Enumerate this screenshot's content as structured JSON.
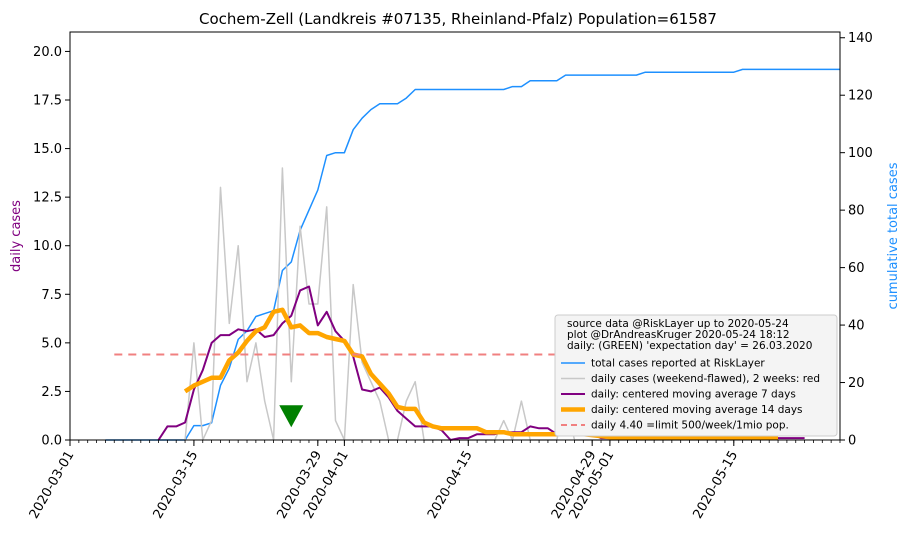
{
  "chart_data": {
    "type": "line",
    "title": "Cochem-Zell (Landkreis #07135, Rheinland-Pfalz) Population=61587",
    "ylabel_left": "daily cases",
    "ylabel_right": "cumulative total cases",
    "x_range": [
      "2020-03-01",
      "2020-05-27"
    ],
    "x_ticks": [
      "2020-03-01",
      "2020-03-15",
      "2020-03-29",
      "2020-04-01",
      "2020-04-15",
      "2020-04-29",
      "2020-05-01",
      "2020-05-15"
    ],
    "y_left_range": [
      0,
      21
    ],
    "y_left_ticks": [
      "0.0",
      "2.5",
      "5.0",
      "7.5",
      "10.0",
      "12.5",
      "15.0",
      "17.5",
      "20.0"
    ],
    "y_right_range": [
      0,
      142
    ],
    "y_right_ticks": [
      "0",
      "20",
      "40",
      "60",
      "80",
      "100",
      "120",
      "140"
    ],
    "grid": false,
    "legend_position": "lower-right",
    "legend_header": [
      "source data @RiskLayer up to 2020-05-24",
      "plot @DrAndreasKruger 2020-05-24 18:12",
      "daily: (GREEN) 'expectation day' = 26.03.2020"
    ],
    "expectation_marker": {
      "date": "2020-03-26",
      "value": 0.5,
      "color": "#008000"
    },
    "series": [
      {
        "name": "total cases reported at RiskLayer",
        "axis": "right",
        "color": "#1e90ff",
        "width": 1.5,
        "points": [
          [
            "2020-03-05",
            0
          ],
          [
            "2020-03-14",
            0
          ],
          [
            "2020-03-15",
            5
          ],
          [
            "2020-03-16",
            5
          ],
          [
            "2020-03-17",
            6
          ],
          [
            "2020-03-18",
            19
          ],
          [
            "2020-03-19",
            25
          ],
          [
            "2020-03-20",
            35
          ],
          [
            "2020-03-21",
            38
          ],
          [
            "2020-03-22",
            43
          ],
          [
            "2020-03-23",
            44
          ],
          [
            "2020-03-24",
            45
          ],
          [
            "2020-03-25",
            59
          ],
          [
            "2020-03-26",
            62
          ],
          [
            "2020-03-27",
            73
          ],
          [
            "2020-03-28",
            80
          ],
          [
            "2020-03-29",
            87
          ],
          [
            "2020-03-30",
            99
          ],
          [
            "2020-03-31",
            100
          ],
          [
            "2020-04-01",
            100
          ],
          [
            "2020-04-02",
            108
          ],
          [
            "2020-04-03",
            112
          ],
          [
            "2020-04-04",
            115
          ],
          [
            "2020-04-05",
            117
          ],
          [
            "2020-04-06",
            117
          ],
          [
            "2020-04-07",
            117
          ],
          [
            "2020-04-08",
            119
          ],
          [
            "2020-04-09",
            122
          ],
          [
            "2020-04-19",
            122
          ],
          [
            "2020-04-20",
            123
          ],
          [
            "2020-04-21",
            123
          ],
          [
            "2020-04-22",
            125
          ],
          [
            "2020-04-25",
            125
          ],
          [
            "2020-04-26",
            127
          ],
          [
            "2020-05-04",
            127
          ],
          [
            "2020-05-05",
            128
          ],
          [
            "2020-05-15",
            128
          ],
          [
            "2020-05-16",
            129
          ],
          [
            "2020-05-27",
            129
          ]
        ]
      },
      {
        "name": "daily cases (weekend-flawed), 2 weeks: red",
        "axis": "left",
        "color": "#c8c8c8",
        "width": 1.5,
        "points": [
          [
            "2020-03-14",
            0
          ],
          [
            "2020-03-15",
            5
          ],
          [
            "2020-03-16",
            0
          ],
          [
            "2020-03-17",
            1
          ],
          [
            "2020-03-18",
            13
          ],
          [
            "2020-03-19",
            6
          ],
          [
            "2020-03-20",
            10
          ],
          [
            "2020-03-21",
            3
          ],
          [
            "2020-03-22",
            5
          ],
          [
            "2020-03-23",
            2
          ],
          [
            "2020-03-24",
            0
          ],
          [
            "2020-03-25",
            14
          ],
          [
            "2020-03-26",
            3
          ],
          [
            "2020-03-27",
            11
          ],
          [
            "2020-03-28",
            7
          ],
          [
            "2020-03-29",
            7
          ],
          [
            "2020-03-30",
            12
          ],
          [
            "2020-03-31",
            1
          ],
          [
            "2020-04-01",
            0
          ],
          [
            "2020-04-02",
            8
          ],
          [
            "2020-04-03",
            4
          ],
          [
            "2020-04-04",
            3
          ],
          [
            "2020-04-05",
            2
          ],
          [
            "2020-04-06",
            0
          ],
          [
            "2020-04-07",
            0
          ],
          [
            "2020-04-08",
            2
          ],
          [
            "2020-04-09",
            3
          ],
          [
            "2020-04-10",
            0
          ],
          [
            "2020-04-11",
            0
          ],
          [
            "2020-04-12",
            0
          ],
          [
            "2020-04-13",
            0
          ],
          [
            "2020-04-14",
            0
          ],
          [
            "2020-04-15",
            0
          ],
          [
            "2020-04-16",
            0
          ],
          [
            "2020-04-17",
            0
          ],
          [
            "2020-04-18",
            0
          ],
          [
            "2020-04-19",
            1
          ],
          [
            "2020-04-20",
            0
          ],
          [
            "2020-04-21",
            2
          ],
          [
            "2020-04-22",
            0
          ],
          [
            "2020-04-23",
            0
          ],
          [
            "2020-04-24",
            0
          ],
          [
            "2020-04-25",
            0
          ],
          [
            "2020-04-26",
            2
          ],
          [
            "2020-04-27",
            0
          ],
          [
            "2020-05-15",
            0
          ]
        ]
      },
      {
        "name": "daily: centered moving average 7 days",
        "axis": "left",
        "color": "#800080",
        "width": 2,
        "points": [
          [
            "2020-03-11",
            0
          ],
          [
            "2020-03-12",
            0.7
          ],
          [
            "2020-03-13",
            0.7
          ],
          [
            "2020-03-14",
            0.9
          ],
          [
            "2020-03-15",
            2.6
          ],
          [
            "2020-03-16",
            3.6
          ],
          [
            "2020-03-17",
            5.0
          ],
          [
            "2020-03-18",
            5.4
          ],
          [
            "2020-03-19",
            5.4
          ],
          [
            "2020-03-20",
            5.7
          ],
          [
            "2020-03-21",
            5.6
          ],
          [
            "2020-03-22",
            5.7
          ],
          [
            "2020-03-23",
            5.3
          ],
          [
            "2020-03-24",
            5.4
          ],
          [
            "2020-03-25",
            6.0
          ],
          [
            "2020-03-26",
            6.4
          ],
          [
            "2020-03-27",
            7.7
          ],
          [
            "2020-03-28",
            7.9
          ],
          [
            "2020-03-29",
            5.9
          ],
          [
            "2020-03-30",
            6.6
          ],
          [
            "2020-03-31",
            5.6
          ],
          [
            "2020-04-01",
            5.1
          ],
          [
            "2020-04-02",
            4.3
          ],
          [
            "2020-04-03",
            2.6
          ],
          [
            "2020-04-04",
            2.5
          ],
          [
            "2020-04-05",
            2.7
          ],
          [
            "2020-04-06",
            2.2
          ],
          [
            "2020-04-07",
            1.5
          ],
          [
            "2020-04-08",
            1.1
          ],
          [
            "2020-04-09",
            0.7
          ],
          [
            "2020-04-10",
            0.7
          ],
          [
            "2020-04-11",
            0.7
          ],
          [
            "2020-04-12",
            0.5
          ],
          [
            "2020-04-13",
            0
          ],
          [
            "2020-04-14",
            0.1
          ],
          [
            "2020-04-15",
            0.1
          ],
          [
            "2020-04-16",
            0.3
          ],
          [
            "2020-04-17",
            0.3
          ],
          [
            "2020-04-18",
            0.3
          ],
          [
            "2020-04-19",
            0.4
          ],
          [
            "2020-04-20",
            0.4
          ],
          [
            "2020-04-21",
            0.4
          ],
          [
            "2020-04-22",
            0.7
          ],
          [
            "2020-04-23",
            0.6
          ],
          [
            "2020-04-24",
            0.6
          ],
          [
            "2020-04-25",
            0.3
          ],
          [
            "2020-04-26",
            0.3
          ],
          [
            "2020-04-27",
            0.3
          ],
          [
            "2020-04-28",
            0.3
          ],
          [
            "2020-04-29",
            0.3
          ],
          [
            "2020-04-30",
            0.1
          ],
          [
            "2020-05-23",
            0.1
          ]
        ]
      },
      {
        "name": "daily: centered moving average 14 days",
        "axis": "left",
        "color": "#ffa500",
        "width": 4.5,
        "points": [
          [
            "2020-03-14",
            2.5
          ],
          [
            "2020-03-15",
            2.8
          ],
          [
            "2020-03-16",
            3.0
          ],
          [
            "2020-03-17",
            3.2
          ],
          [
            "2020-03-18",
            3.2
          ],
          [
            "2020-03-19",
            4.1
          ],
          [
            "2020-03-20",
            4.5
          ],
          [
            "2020-03-21",
            5.1
          ],
          [
            "2020-03-22",
            5.6
          ],
          [
            "2020-03-23",
            5.8
          ],
          [
            "2020-03-24",
            6.6
          ],
          [
            "2020-03-25",
            6.7
          ],
          [
            "2020-03-26",
            5.8
          ],
          [
            "2020-03-27",
            5.9
          ],
          [
            "2020-03-28",
            5.5
          ],
          [
            "2020-03-29",
            5.5
          ],
          [
            "2020-03-30",
            5.3
          ],
          [
            "2020-03-31",
            5.2
          ],
          [
            "2020-04-01",
            5.1
          ],
          [
            "2020-04-02",
            4.4
          ],
          [
            "2020-04-03",
            4.3
          ],
          [
            "2020-04-04",
            3.4
          ],
          [
            "2020-04-05",
            2.9
          ],
          [
            "2020-04-06",
            2.4
          ],
          [
            "2020-04-07",
            1.7
          ],
          [
            "2020-04-08",
            1.6
          ],
          [
            "2020-04-09",
            1.6
          ],
          [
            "2020-04-10",
            0.9
          ],
          [
            "2020-04-11",
            0.7
          ],
          [
            "2020-04-12",
            0.6
          ],
          [
            "2020-04-13",
            0.6
          ],
          [
            "2020-04-14",
            0.6
          ],
          [
            "2020-04-15",
            0.6
          ],
          [
            "2020-04-16",
            0.6
          ],
          [
            "2020-04-17",
            0.4
          ],
          [
            "2020-04-18",
            0.4
          ],
          [
            "2020-04-19",
            0.4
          ],
          [
            "2020-04-20",
            0.3
          ],
          [
            "2020-04-21",
            0.3
          ],
          [
            "2020-04-22",
            0.3
          ],
          [
            "2020-04-28",
            0.3
          ],
          [
            "2020-04-30",
            0.2
          ],
          [
            "2020-05-02",
            0.1
          ],
          [
            "2020-05-20",
            0.1
          ]
        ]
      },
      {
        "name": "daily 4.40 =limit 500/week/1mio pop.",
        "axis": "left",
        "color": "#f08080",
        "width": 2,
        "dash": true,
        "points": [
          [
            "2020-03-06",
            4.4
          ],
          [
            "2020-05-24",
            4.4
          ]
        ]
      }
    ]
  }
}
